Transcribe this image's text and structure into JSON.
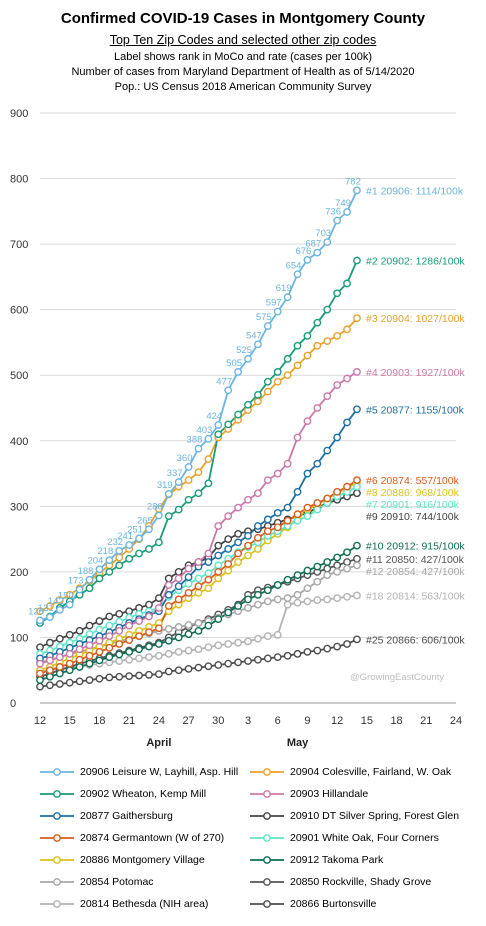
{
  "titles": {
    "title": "Confirmed  COVID-19 Cases in Montgomery County",
    "subtitle": "Top Ten Zip Codes and selected other zip codes",
    "note1": "Label shows rank in MoCo and rate (cases per 100k)",
    "note2": "Number of cases from Maryland Department of Health as of 5/14/2020",
    "note3": "Pop.: US Census 2018 American Community Survey"
  },
  "watermark": "@GrowingEastCounty",
  "chart_data": {
    "type": "line",
    "title": "Confirmed  COVID-19 Cases in Montgomery County",
    "xlim": [
      0,
      42
    ],
    "ylim": [
      0,
      900
    ],
    "yticks": [
      0,
      100,
      200,
      300,
      400,
      500,
      600,
      700,
      800,
      900
    ],
    "xticks": [
      0,
      3,
      6,
      9,
      12,
      15,
      18,
      21,
      24,
      27,
      30,
      33,
      36,
      39,
      42
    ],
    "xtick_labels": [
      "12",
      "15",
      "18",
      "21",
      "24",
      "27",
      "30",
      "3",
      "6",
      "9",
      "12",
      "15",
      "18",
      "21",
      "24"
    ],
    "month_labels": [
      {
        "label": "April",
        "x": 12
      },
      {
        "label": "May",
        "x": 26
      }
    ],
    "grid": true,
    "legend_position": "bottom",
    "series": [
      {
        "name": "20906 Leisure W, Layhill, Asp. Hill",
        "color": "#6BB5E0",
        "end_label": "#1 20906: 1114/100k",
        "x": [
          0,
          1,
          2,
          3,
          4,
          5,
          6,
          7,
          8,
          9,
          10,
          11,
          12,
          13,
          14,
          15,
          16,
          17,
          18,
          19,
          20,
          21,
          22,
          23,
          24,
          25,
          26,
          27,
          28,
          29,
          30,
          31,
          32
        ],
        "y": [
          126,
          131,
          142,
          150,
          173,
          188,
          204,
          218,
          232,
          241,
          251,
          265,
          286,
          319,
          337,
          360,
          388,
          403,
          424,
          477,
          505,
          525,
          547,
          575,
          597,
          619,
          654,
          676,
          687,
          703,
          736,
          749,
          782
        ],
        "point_labels": [
          126,
          131,
          142,
          150,
          173,
          188,
          204,
          218,
          232,
          241,
          251,
          265,
          286,
          319,
          337,
          360,
          388,
          403,
          424,
          477,
          505,
          525,
          547,
          575,
          597,
          619,
          654,
          676,
          687,
          703,
          736,
          749,
          782
        ]
      },
      {
        "name": "20902 Wheaton, Kemp Mill",
        "color": "#1A9C7A",
        "end_label": "#2 20902: 1286/100k",
        "x": [
          0,
          1,
          2,
          3,
          4,
          5,
          6,
          7,
          8,
          9,
          10,
          11,
          12,
          13,
          14,
          15,
          16,
          17,
          18,
          19,
          20,
          21,
          22,
          23,
          24,
          25,
          26,
          27,
          28,
          29,
          30,
          31,
          32
        ],
        "y": [
          122,
          132,
          145,
          155,
          165,
          175,
          190,
          200,
          210,
          220,
          228,
          235,
          245,
          285,
          295,
          310,
          320,
          335,
          410,
          425,
          440,
          455,
          470,
          490,
          505,
          525,
          545,
          560,
          580,
          600,
          625,
          640,
          675
        ]
      },
      {
        "name": "20904 Colesville, Fairland, W. Oak",
        "color": "#E8A22D",
        "end_label": "#3 20904: 1027/100k",
        "x": [
          0,
          1,
          2,
          3,
          4,
          5,
          6,
          7,
          8,
          9,
          10,
          11,
          12,
          13,
          14,
          15,
          16,
          17,
          18,
          19,
          20,
          21,
          22,
          23,
          24,
          25,
          26,
          27,
          28,
          29,
          30,
          31,
          32
        ],
        "y": [
          140,
          148,
          157,
          165,
          175,
          186,
          198,
          210,
          222,
          235,
          250,
          270,
          296,
          318,
          330,
          340,
          352,
          372,
          405,
          418,
          432,
          447,
          460,
          475,
          490,
          500,
          515,
          530,
          545,
          552,
          560,
          570,
          587
        ]
      },
      {
        "name": "20903 Hillandale",
        "color": "#CC79A7",
        "end_label": "#4 20903: 1927/100k",
        "x": [
          0,
          1,
          2,
          3,
          4,
          5,
          6,
          7,
          8,
          9,
          10,
          11,
          12,
          13,
          14,
          15,
          16,
          17,
          18,
          19,
          20,
          21,
          22,
          23,
          24,
          25,
          26,
          27,
          28,
          29,
          30,
          31,
          32
        ],
        "y": [
          60,
          65,
          70,
          75,
          82,
          88,
          95,
          102,
          110,
          118,
          125,
          132,
          145,
          180,
          190,
          205,
          215,
          228,
          270,
          285,
          298,
          310,
          320,
          340,
          350,
          365,
          405,
          430,
          450,
          468,
          485,
          495,
          505
        ]
      },
      {
        "name": "20877 Gaithersburg",
        "color": "#1C6FA3",
        "end_label": "#5 20877: 1155/100k",
        "x": [
          0,
          1,
          2,
          3,
          4,
          5,
          6,
          7,
          8,
          9,
          10,
          11,
          12,
          13,
          14,
          15,
          16,
          17,
          18,
          19,
          20,
          21,
          22,
          23,
          24,
          25,
          26,
          27,
          28,
          29,
          30,
          31,
          32
        ],
        "y": [
          68,
          72,
          78,
          84,
          90,
          96,
          102,
          108,
          115,
          122,
          128,
          134,
          140,
          165,
          178,
          192,
          208,
          215,
          225,
          235,
          245,
          255,
          270,
          280,
          290,
          298,
          322,
          350,
          365,
          385,
          405,
          428,
          448
        ]
      },
      {
        "name": "20874 Germantown (W of 270)",
        "color": "#D85C1C",
        "end_label": "#6 20874: 557/100k",
        "x": [
          0,
          1,
          2,
          3,
          4,
          5,
          6,
          7,
          8,
          9,
          10,
          11,
          12,
          13,
          14,
          15,
          16,
          17,
          18,
          19,
          20,
          21,
          22,
          23,
          24,
          25,
          26,
          27,
          28,
          29,
          30,
          31,
          32
        ],
        "y": [
          45,
          50,
          55,
          60,
          66,
          72,
          78,
          84,
          90,
          96,
          102,
          108,
          114,
          148,
          158,
          168,
          178,
          188,
          200,
          212,
          228,
          240,
          252,
          262,
          268,
          278,
          288,
          298,
          305,
          312,
          322,
          330,
          340
        ]
      },
      {
        "name": "20901 White Oak, Four Corners",
        "color": "#5EE6C8",
        "end_label": "#7 20901: 916/100k",
        "x": [
          0,
          1,
          2,
          3,
          4,
          5,
          6,
          7,
          8,
          9,
          10,
          11,
          12,
          13,
          14,
          15,
          16,
          17,
          18,
          19,
          20,
          21,
          22,
          23,
          24,
          25,
          26,
          27,
          28,
          29,
          30,
          31,
          32
        ],
        "y": [
          75,
          80,
          86,
          92,
          98,
          105,
          112,
          118,
          124,
          130,
          136,
          140,
          145,
          162,
          172,
          182,
          190,
          198,
          210,
          220,
          230,
          238,
          245,
          255,
          262,
          270,
          278,
          285,
          295,
          305,
          315,
          322,
          330
        ]
      },
      {
        "name": "20886 Montgomery Village",
        "color": "#D9C11E",
        "end_label": "#8 20886: 968/100k",
        "x": [
          0,
          1,
          2,
          3,
          4,
          5,
          6,
          7,
          8,
          9,
          10,
          11,
          12,
          13,
          14,
          15,
          16,
          17,
          18,
          19,
          20,
          21,
          22,
          23,
          24,
          25,
          26,
          27,
          28,
          29,
          30,
          31,
          32
        ],
        "y": [
          50,
          55,
          62,
          68,
          74,
          80,
          86,
          92,
          98,
          104,
          110,
          116,
          122,
          140,
          150,
          160,
          168,
          175,
          190,
          202,
          215,
          225,
          235,
          248,
          258,
          268,
          282,
          295,
          302,
          312,
          320,
          328,
          336
        ]
      },
      {
        "name": "20910 DT Silver Spring, Forest Glen",
        "color": "#444444",
        "end_label": "#9 20910: 744/100k",
        "x": [
          0,
          1,
          2,
          3,
          4,
          5,
          6,
          7,
          8,
          9,
          10,
          11,
          12,
          13,
          14,
          15,
          16,
          17,
          18,
          19,
          20,
          21,
          22,
          23,
          24,
          25,
          26,
          27,
          28,
          29,
          30,
          31,
          32
        ],
        "y": [
          85,
          92,
          98,
          104,
          110,
          118,
          125,
          132,
          136,
          140,
          145,
          150,
          160,
          190,
          200,
          210,
          215,
          222,
          240,
          250,
          258,
          262,
          265,
          270,
          275,
          280,
          285,
          290,
          298,
          305,
          310,
          315,
          320
        ]
      },
      {
        "name": "20912 Takoma Park",
        "color": "#0F6E55",
        "end_label": "#10 20912: 915/100k",
        "x": [
          0,
          1,
          2,
          3,
          4,
          5,
          6,
          7,
          8,
          9,
          10,
          11,
          12,
          13,
          14,
          15,
          16,
          17,
          18,
          19,
          20,
          21,
          22,
          23,
          24,
          25,
          26,
          27,
          28,
          29,
          30,
          31,
          32
        ],
        "y": [
          35,
          40,
          45,
          50,
          55,
          60,
          65,
          70,
          74,
          78,
          82,
          86,
          90,
          95,
          100,
          105,
          110,
          118,
          128,
          138,
          148,
          158,
          165,
          172,
          180,
          188,
          195,
          202,
          208,
          215,
          222,
          230,
          240
        ]
      },
      {
        "name": "20854 Potomac",
        "color": "#A8A8A8",
        "end_label": "#12 20854: 427/100k",
        "x": [
          0,
          1,
          2,
          3,
          4,
          5,
          6,
          7,
          8,
          9,
          10,
          11,
          12,
          13,
          14,
          15,
          16,
          17,
          18,
          19,
          20,
          21,
          22,
          23,
          24,
          25,
          26,
          27,
          28,
          29,
          30,
          31,
          32
        ],
        "y": [
          62,
          66,
          70,
          74,
          78,
          82,
          86,
          90,
          94,
          98,
          102,
          106,
          110,
          113,
          116,
          119,
          122,
          125,
          130,
          135,
          140,
          145,
          150,
          155,
          158,
          160,
          165,
          175,
          185,
          195,
          200,
          205,
          210
        ]
      },
      {
        "name": "20850 Rockville, Shady Grove",
        "color": "#555555",
        "end_label": "#11 20850: 427/100k",
        "x": [
          0,
          1,
          2,
          3,
          4,
          5,
          6,
          7,
          8,
          9,
          10,
          11,
          12,
          13,
          14,
          15,
          16,
          17,
          18,
          19,
          20,
          21,
          22,
          23,
          24,
          25,
          26,
          27,
          28,
          29,
          30,
          31,
          32
        ],
        "y": [
          40,
          45,
          50,
          55,
          60,
          64,
          68,
          72,
          76,
          80,
          84,
          88,
          92,
          100,
          108,
          116,
          122,
          128,
          135,
          142,
          150,
          165,
          172,
          176,
          180,
          185,
          190,
          195,
          200,
          205,
          210,
          215,
          220
        ]
      },
      {
        "name": "20814 Bethesda (NIH area)",
        "color": "#B3B3B3",
        "end_label": "#18 20814: 563/100k",
        "x": [
          0,
          1,
          2,
          3,
          4,
          5,
          6,
          7,
          8,
          9,
          10,
          11,
          12,
          13,
          14,
          15,
          16,
          17,
          18,
          19,
          20,
          21,
          22,
          23,
          24,
          25,
          26,
          27,
          28,
          29,
          30,
          31,
          32
        ],
        "y": [
          48,
          50,
          52,
          54,
          56,
          58,
          60,
          62,
          64,
          66,
          68,
          70,
          72,
          75,
          78,
          80,
          82,
          85,
          88,
          90,
          92,
          94,
          98,
          102,
          104,
          150,
          153,
          155,
          157,
          158,
          160,
          162,
          164
        ]
      },
      {
        "name": "20866 Burtonsville",
        "color": "#4D4D4D",
        "end_label": "#25 20866: 606/100k",
        "x": [
          0,
          1,
          2,
          3,
          4,
          5,
          6,
          7,
          8,
          9,
          10,
          11,
          12,
          13,
          14,
          15,
          16,
          17,
          18,
          19,
          20,
          21,
          22,
          23,
          24,
          25,
          26,
          27,
          28,
          29,
          30,
          31,
          32
        ],
        "y": [
          25,
          27,
          29,
          31,
          33,
          35,
          37,
          39,
          40,
          41,
          42,
          43,
          44,
          48,
          50,
          52,
          54,
          56,
          58,
          60,
          62,
          64,
          66,
          68,
          70,
          72,
          75,
          78,
          80,
          83,
          86,
          90,
          97
        ]
      }
    ]
  },
  "legend_items": [
    {
      "label": "20906 Leisure W, Layhill, Asp. Hill",
      "color": "#6BB5E0"
    },
    {
      "label": "20904 Colesville, Fairland, W. Oak",
      "color": "#E8A22D"
    },
    {
      "label": "20902 Wheaton, Kemp Mill",
      "color": "#1A9C7A"
    },
    {
      "label": "20903 Hillandale",
      "color": "#CC79A7"
    },
    {
      "label": "20877 Gaithersburg",
      "color": "#1C6FA3"
    },
    {
      "label": "20910 DT Silver Spring, Forest Glen",
      "color": "#444444"
    },
    {
      "label": "20874 Germantown (W of 270)",
      "color": "#D85C1C"
    },
    {
      "label": "20901 White Oak, Four Corners",
      "color": "#5EE6C8"
    },
    {
      "label": "20886 Montgomery Village",
      "color": "#D9C11E"
    },
    {
      "label": "20912 Takoma Park",
      "color": "#0F6E55"
    },
    {
      "label": "20854 Potomac",
      "color": "#A8A8A8"
    },
    {
      "label": "20850 Rockville, Shady Grove",
      "color": "#555555"
    },
    {
      "label": "20814 Bethesda (NIH area)",
      "color": "#B3B3B3"
    },
    {
      "label": "20866 Burtonsville",
      "color": "#4D4D4D"
    }
  ]
}
